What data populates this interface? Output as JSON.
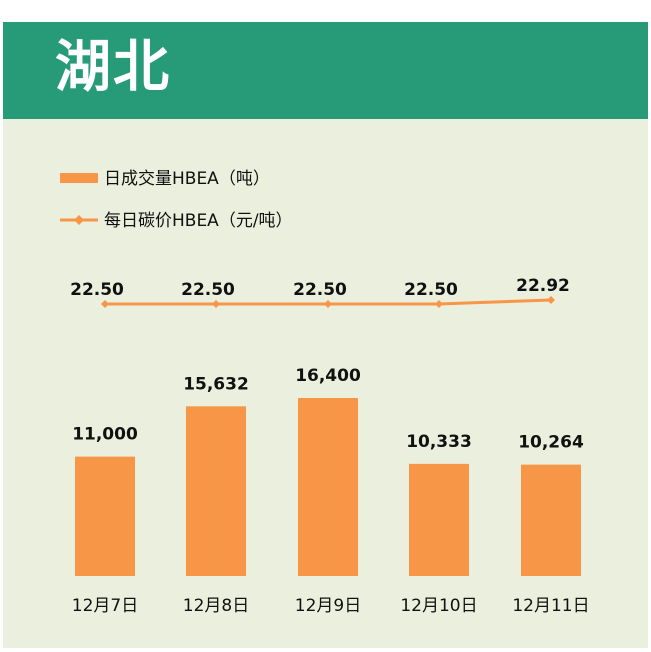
{
  "header": {
    "title": "湖北"
  },
  "colors": {
    "banner": "#279a78",
    "background": "#ebf0de",
    "bar": "#f79646",
    "line": "#f79646"
  },
  "chart_data": {
    "type": "bar+line",
    "categories": [
      "12月7日",
      "12月8日",
      "12月9日",
      "12月10日",
      "12月11日"
    ],
    "series": [
      {
        "name": "日成交量HBEA（吨）",
        "type": "bar",
        "values": [
          11000,
          15632,
          16400,
          10333,
          10264
        ],
        "labels": [
          "11,000",
          "15,632",
          "16,400",
          "10,333",
          "10,264"
        ]
      },
      {
        "name": "每日碳价HBEA（元/吨）",
        "type": "line",
        "values": [
          22.5,
          22.5,
          22.5,
          22.5,
          22.92
        ],
        "labels": [
          "22.50",
          "22.50",
          "22.50",
          "22.50",
          "22.92"
        ]
      }
    ],
    "legend_position": "top-left",
    "grid": false
  }
}
